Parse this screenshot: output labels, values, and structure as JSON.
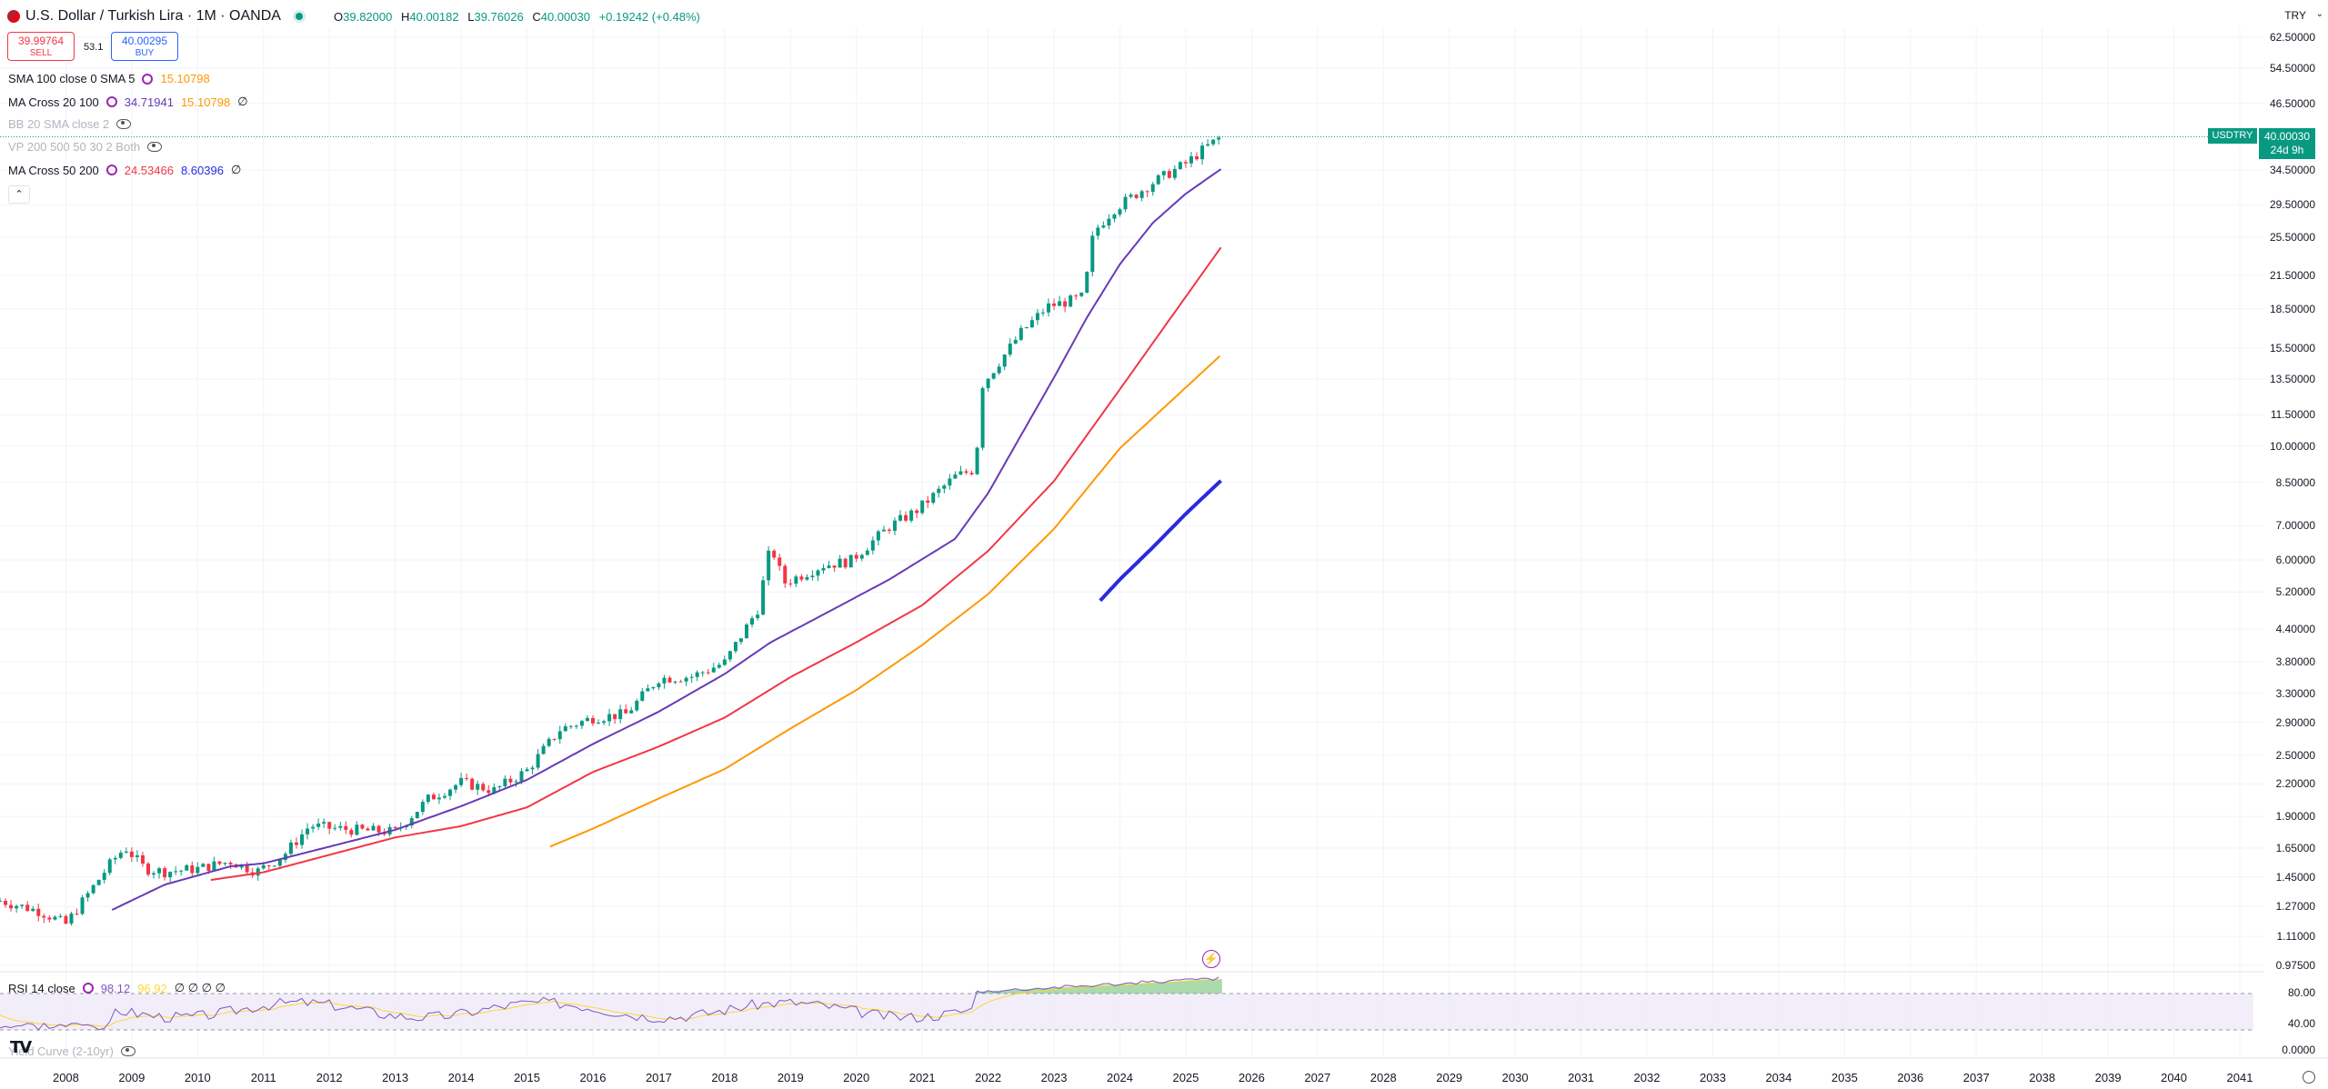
{
  "header": {
    "symbol_title": "U.S. Dollar / Turkish Lira · 1M · OANDA",
    "ohlc": [
      {
        "k": "O",
        "v": "39.82000"
      },
      {
        "k": "H",
        "v": "40.00182"
      },
      {
        "k": "L",
        "v": "39.76026"
      },
      {
        "k": "C",
        "v": "40.00030"
      }
    ],
    "change": "+0.19242 (+0.48%)",
    "sell_price": "39.99764",
    "sell_label": "SELL",
    "spread": "53.1",
    "buy_price": "40.00295",
    "buy_label": "BUY",
    "currency": "TRY"
  },
  "indicators": [
    {
      "name": "SMA 100 close 0 SMA 5",
      "values": [
        "15.10798"
      ],
      "colors": [
        "#ff9800"
      ],
      "hidden": false
    },
    {
      "name": "MA Cross 20 100",
      "values": [
        "34.71941",
        "15.10798",
        "∅"
      ],
      "colors": [
        "#673ab7",
        "#ff9800",
        "#131722"
      ],
      "hidden": false
    },
    {
      "name": "BB 20 SMA close 2",
      "values": [],
      "colors": [],
      "hidden": true
    },
    {
      "name": "VP 200 500 50 30 2 Both",
      "values": [],
      "colors": [],
      "hidden": true
    },
    {
      "name": "MA Cross 50 200",
      "values": [
        "24.53466",
        "8.60396",
        "∅"
      ],
      "colors": [
        "#f23645",
        "#2a2ae0",
        "#131722"
      ],
      "hidden": false
    }
  ],
  "price_tag": {
    "symbol": "USDTRY",
    "price": "40.00030",
    "countdown": "24d 9h"
  },
  "rsi": {
    "name": "RSI 14 close",
    "value": "98.12",
    "ma_value": "96.92",
    "extra": "∅ ∅ ∅ ∅",
    "levels": [
      "80.00",
      "40.00",
      "0.0000"
    ]
  },
  "yield_curve": {
    "name": "Yield Curve (2-10yr)"
  },
  "colors": {
    "up": "#089981",
    "down": "#f23645",
    "sma100": "#ff9800",
    "ma20": "#673ab7",
    "ma50": "#f23645",
    "ma200": "#2a2ae0",
    "rsi_line": "#7e57c2",
    "rsi_ma": "#fdd835"
  },
  "chart_data": {
    "type": "candlestick",
    "title": "U.S. Dollar / Turkish Lira · 1M · OANDA",
    "y_scale": "log",
    "ylim": [
      0.975,
      62.5
    ],
    "y_ticks": [
      "62.50000",
      "54.50000",
      "46.50000",
      "34.50000",
      "29.50000",
      "25.50000",
      "21.50000",
      "18.50000",
      "15.50000",
      "13.50000",
      "11.50000",
      "10.00000",
      "8.50000",
      "7.00000",
      "6.00000",
      "5.20000",
      "4.40000",
      "3.80000",
      "3.30000",
      "2.90000",
      "2.50000",
      "2.20000",
      "1.90000",
      "1.65000",
      "1.45000",
      "1.27000",
      "1.11000",
      "0.97500"
    ],
    "x_ticks": [
      "2008",
      "2009",
      "2010",
      "2011",
      "2012",
      "2013",
      "2014",
      "2015",
      "2016",
      "2017",
      "2018",
      "2019",
      "2020",
      "2021",
      "2022",
      "2023",
      "2024",
      "2025",
      "2026",
      "2027",
      "2028",
      "2029",
      "2030",
      "2031",
      "2032",
      "2033",
      "2034",
      "2035",
      "2036",
      "2037",
      "2038",
      "2039",
      "2040",
      "2041"
    ],
    "series": [
      {
        "name": "USDTRY",
        "kind": "close_keypoints",
        "x": [
          2007.0,
          2007.6,
          2008.0,
          2008.7,
          2008.9,
          2009.2,
          2009.5,
          2010.0,
          2010.5,
          2010.9,
          2011.3,
          2011.7,
          2012.0,
          2012.5,
          2013.0,
          2013.5,
          2014.0,
          2014.5,
          2015.0,
          2015.5,
          2016.0,
          2016.5,
          2017.0,
          2017.5,
          2018.0,
          2018.5,
          2018.7,
          2018.9,
          2019.5,
          2019.9,
          2020.5,
          2020.9,
          2021.5,
          2021.8,
          2021.92,
          2022.0,
          2022.5,
          2022.9,
          2023.3,
          2023.45,
          2023.6,
          2023.9,
          2024.5,
          2025.0,
          2025.3,
          2025.55
        ],
        "y": [
          1.3,
          1.24,
          1.17,
          1.55,
          1.65,
          1.5,
          1.48,
          1.5,
          1.55,
          1.48,
          1.59,
          1.82,
          1.8,
          1.78,
          1.77,
          2.05,
          2.21,
          2.13,
          2.33,
          2.8,
          2.95,
          3.0,
          3.52,
          3.55,
          3.78,
          4.8,
          6.4,
          5.4,
          5.85,
          5.95,
          6.95,
          7.45,
          8.7,
          9.0,
          13.3,
          13.6,
          16.6,
          18.65,
          19.2,
          19.5,
          26.0,
          28.8,
          32.5,
          35.4,
          38.0,
          40.0003
        ]
      },
      {
        "name": "SMA 100",
        "x": [
          2015.35,
          2016.0,
          2017.0,
          2018.0,
          2019.0,
          2020.0,
          2021.0,
          2022.0,
          2023.0,
          2024.0,
          2025.55
        ],
        "y": [
          1.66,
          1.8,
          2.06,
          2.35,
          2.82,
          3.35,
          4.1,
          5.15,
          6.9,
          9.9,
          15.10798
        ]
      },
      {
        "name": "MA 20",
        "x": [
          2008.7,
          2009.5,
          2010.5,
          2011.0,
          2012.0,
          2013.0,
          2014.0,
          2015.0,
          2016.0,
          2017.0,
          2018.0,
          2018.7,
          2019.5,
          2020.5,
          2021.5,
          2022.0,
          2022.5,
          2023.0,
          2023.5,
          2024.0,
          2024.5,
          2025.0,
          2025.55
        ],
        "y": [
          1.25,
          1.4,
          1.52,
          1.54,
          1.66,
          1.79,
          1.99,
          2.24,
          2.63,
          3.04,
          3.6,
          4.15,
          4.7,
          5.5,
          6.6,
          8.1,
          10.5,
          13.6,
          17.8,
          22.6,
          27.2,
          31.0,
          34.71941
        ]
      },
      {
        "name": "MA 50",
        "x": [
          2010.2,
          2011.0,
          2012.0,
          2013.0,
          2014.0,
          2015.0,
          2016.0,
          2017.0,
          2018.0,
          2019.0,
          2020.0,
          2021.0,
          2022.0,
          2023.0,
          2024.0,
          2025.55
        ],
        "y": [
          1.43,
          1.48,
          1.6,
          1.73,
          1.82,
          1.98,
          2.32,
          2.6,
          2.96,
          3.55,
          4.15,
          4.9,
          6.25,
          8.55,
          12.9,
          24.53466
        ]
      },
      {
        "name": "MA 200",
        "x": [
          2023.7,
          2024.0,
          2024.5,
          2025.0,
          2025.55
        ],
        "y": [
          5.0,
          5.5,
          6.35,
          7.38,
          8.60396
        ]
      }
    ]
  }
}
